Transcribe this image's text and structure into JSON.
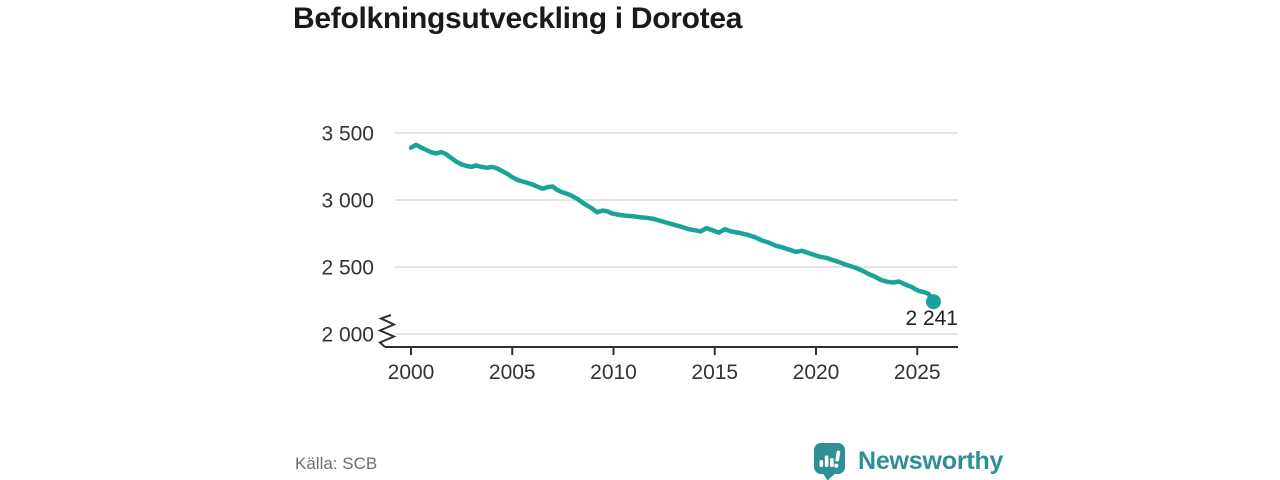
{
  "header": {
    "title": "Befolkningsutveckling i Dorotea"
  },
  "footer": {
    "source": "Källa: SCB",
    "brand": {
      "name": "Newsworthy",
      "icon": "newsworthy-chart-bubble-icon",
      "color": "#2e9096"
    }
  },
  "chart_data": {
    "type": "line",
    "title": "Befolkningsutveckling i Dorotea",
    "xlabel": "",
    "ylabel": "",
    "xlim": [
      1999.5,
      2027.2
    ],
    "ylim": [
      2000,
      3500
    ],
    "y_axis_break_at_2000": true,
    "grid": "horizontal",
    "legend": "none",
    "line_color": "#1aa398",
    "axis_color": "#2f2f2f",
    "grid_color": "#dcdcdc",
    "x_ticks": [
      2000,
      2005,
      2010,
      2015,
      2020,
      2025
    ],
    "y_ticks": [
      {
        "value": 3500,
        "label": "3 500"
      },
      {
        "value": 3000,
        "label": "3 000"
      },
      {
        "value": 2500,
        "label": "2 500"
      },
      {
        "value": 2000,
        "label": "2 000"
      }
    ],
    "end_point": {
      "x": 2025.8,
      "value": 2241,
      "label": "2 241"
    },
    "series": [
      [
        2000.0,
        3390
      ],
      [
        2000.25,
        3412
      ],
      [
        2000.5,
        3392
      ],
      [
        2000.75,
        3374
      ],
      [
        2001.0,
        3356
      ],
      [
        2001.25,
        3348
      ],
      [
        2001.5,
        3358
      ],
      [
        2001.75,
        3340
      ],
      [
        2002.0,
        3312
      ],
      [
        2002.25,
        3285
      ],
      [
        2002.5,
        3266
      ],
      [
        2002.75,
        3254
      ],
      [
        2003.0,
        3247
      ],
      [
        2003.2,
        3258
      ],
      [
        2003.5,
        3247
      ],
      [
        2003.75,
        3240
      ],
      [
        2004.0,
        3247
      ],
      [
        2004.25,
        3236
      ],
      [
        2004.5,
        3216
      ],
      [
        2004.75,
        3196
      ],
      [
        2005.0,
        3170
      ],
      [
        2005.3,
        3148
      ],
      [
        2005.6,
        3134
      ],
      [
        2006.0,
        3116
      ],
      [
        2006.3,
        3096
      ],
      [
        2006.5,
        3084
      ],
      [
        2006.75,
        3096
      ],
      [
        2007.0,
        3101
      ],
      [
        2007.2,
        3077
      ],
      [
        2007.45,
        3059
      ],
      [
        2007.7,
        3046
      ],
      [
        2007.9,
        3034
      ],
      [
        2008.2,
        3009
      ],
      [
        2008.45,
        2983
      ],
      [
        2008.7,
        2958
      ],
      [
        2008.9,
        2941
      ],
      [
        2009.2,
        2908
      ],
      [
        2009.45,
        2921
      ],
      [
        2009.7,
        2916
      ],
      [
        2009.9,
        2901
      ],
      [
        2010.2,
        2891
      ],
      [
        2010.6,
        2883
      ],
      [
        2011.0,
        2878
      ],
      [
        2011.3,
        2872
      ],
      [
        2011.6,
        2868
      ],
      [
        2012.0,
        2858
      ],
      [
        2012.3,
        2845
      ],
      [
        2012.6,
        2832
      ],
      [
        2013.0,
        2815
      ],
      [
        2013.4,
        2798
      ],
      [
        2013.7,
        2783
      ],
      [
        2014.0,
        2775
      ],
      [
        2014.3,
        2766
      ],
      [
        2014.6,
        2790
      ],
      [
        2014.9,
        2773
      ],
      [
        2015.2,
        2756
      ],
      [
        2015.5,
        2782
      ],
      [
        2015.8,
        2766
      ],
      [
        2016.2,
        2755
      ],
      [
        2016.6,
        2741
      ],
      [
        2017.0,
        2722
      ],
      [
        2017.3,
        2700
      ],
      [
        2017.7,
        2680
      ],
      [
        2018.0,
        2660
      ],
      [
        2018.3,
        2648
      ],
      [
        2018.7,
        2628
      ],
      [
        2019.0,
        2613
      ],
      [
        2019.3,
        2621
      ],
      [
        2019.6,
        2605
      ],
      [
        2019.9,
        2590
      ],
      [
        2020.2,
        2576
      ],
      [
        2020.5,
        2569
      ],
      [
        2020.8,
        2553
      ],
      [
        2021.1,
        2539
      ],
      [
        2021.4,
        2522
      ],
      [
        2021.7,
        2507
      ],
      [
        2022.0,
        2492
      ],
      [
        2022.3,
        2472
      ],
      [
        2022.6,
        2448
      ],
      [
        2022.9,
        2428
      ],
      [
        2023.2,
        2404
      ],
      [
        2023.5,
        2390
      ],
      [
        2023.8,
        2384
      ],
      [
        2024.1,
        2392
      ],
      [
        2024.4,
        2370
      ],
      [
        2024.7,
        2352
      ],
      [
        2024.9,
        2335
      ],
      [
        2025.1,
        2320
      ],
      [
        2025.35,
        2312
      ],
      [
        2025.55,
        2300
      ],
      [
        2025.7,
        2270
      ],
      [
        2025.8,
        2241
      ]
    ]
  }
}
